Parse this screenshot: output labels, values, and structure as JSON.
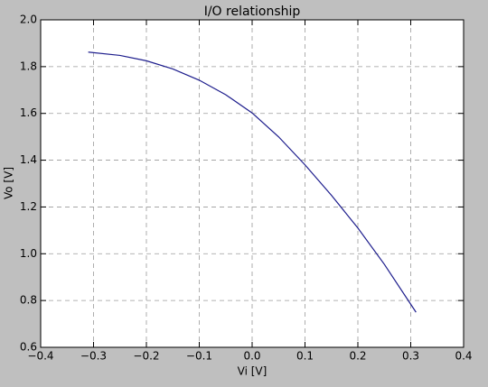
{
  "chart_data": {
    "type": "line",
    "title": "I/O relationship",
    "x_label": "Vi [V]",
    "y_label": "Vo [V]",
    "x": [
      -0.31,
      -0.25,
      -0.2,
      -0.15,
      -0.1,
      -0.05,
      0,
      0.05,
      0.1,
      0.15,
      0.2,
      0.25,
      0.31
    ],
    "series": [
      {
        "color": "#1c1c8c",
        "values": [
          1.862,
          1.848,
          1.825,
          1.79,
          1.742,
          1.68,
          1.602,
          1.5,
          1.38,
          1.25,
          1.11,
          0.955,
          0.75
        ]
      }
    ],
    "xlim": [
      -0.4,
      0.4
    ],
    "xticks": [
      {
        "value": -0.4,
        "label": "−0.4"
      },
      {
        "value": -0.3,
        "label": "−0.3"
      },
      {
        "value": -0.2,
        "label": "−0.2"
      },
      {
        "value": -0.1,
        "label": "−0.1"
      },
      {
        "value": 0,
        "label": "0.0"
      },
      0.1,
      0.2,
      0.3,
      0.4
    ],
    "ylim": [
      0.6,
      2.0
    ],
    "yticks": [
      0.6,
      0.8,
      {
        "value": 1.0,
        "label": "1.0"
      },
      1.2,
      1.4,
      1.6,
      1.8,
      {
        "value": 2.0,
        "label": "2.0"
      }
    ],
    "grid": true
  }
}
